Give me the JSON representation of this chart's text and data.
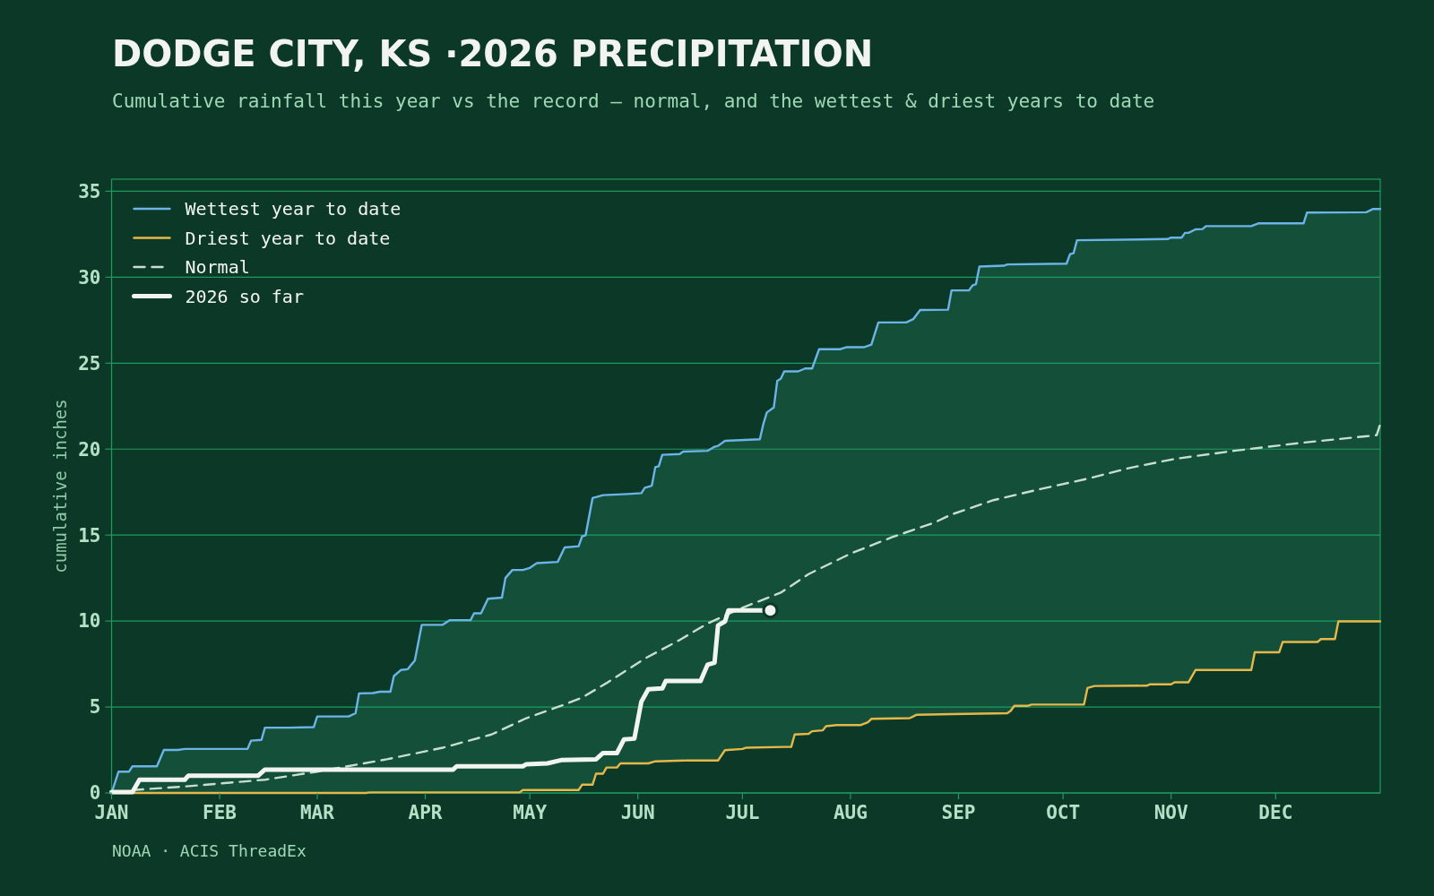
{
  "chart_data": {
    "type": "line",
    "title": "DODGE CITY, KS ·2026 PRECIPITATION",
    "subtitle": "Cumulative rainfall this year vs the record — normal, and the wettest & driest years to date",
    "ylabel": "cumulative inches",
    "annotations": [
      "NOAA · ACIS ThreadEx"
    ],
    "xlim": [
      "--01-01",
      "--12-31"
    ],
    "ylim": [
      0,
      35.7
    ],
    "xticks": [
      {
        "value": "--01-01",
        "label": "JAN"
      },
      {
        "value": "--02-01",
        "label": "FEB"
      },
      {
        "value": "--03-01",
        "label": "MAR"
      },
      {
        "value": "--04-01",
        "label": "APR"
      },
      {
        "value": "--05-01",
        "label": "MAY"
      },
      {
        "value": "--06-01",
        "label": "JUN"
      },
      {
        "value": "--07-01",
        "label": "JUL"
      },
      {
        "value": "--08-01",
        "label": "AUG"
      },
      {
        "value": "--09-01",
        "label": "SEP"
      },
      {
        "value": "--10-01",
        "label": "OCT"
      },
      {
        "value": "--11-01",
        "label": "NOV"
      },
      {
        "value": "--12-01",
        "label": "DEC"
      }
    ],
    "yticks": [
      0,
      5,
      10,
      15,
      20,
      25,
      30,
      35
    ],
    "grid": "y",
    "legend": "top left",
    "series": [
      {
        "name": "Wettest year to date",
        "color": "#6cb4e8",
        "x": [
          "--01-01",
          "--01-03",
          "--01-06",
          "--01-07",
          "--01-14",
          "--01-16",
          "--01-20",
          "--01-22",
          "--02-09",
          "--02-10",
          "--02-13",
          "--02-14",
          "--02-21",
          "--02-28",
          "--03-01",
          "--03-10",
          "--03-12",
          "--03-13",
          "--03-17",
          "--03-19",
          "--03-22",
          "--03-23",
          "--03-25",
          "--03-27",
          "--03-28",
          "--03-29",
          "--03-31",
          "--04-06",
          "--04-08",
          "--04-14",
          "--04-15",
          "--04-17",
          "--04-19",
          "--04-23",
          "--04-24",
          "--04-26",
          "--04-29",
          "--05-01",
          "--05-03",
          "--05-09",
          "--05-11",
          "--05-15",
          "--05-16",
          "--05-17",
          "--05-19",
          "--05-22",
          "--05-29",
          "--06-02",
          "--06-03",
          "--06-05",
          "--06-06",
          "--06-07",
          "--06-08",
          "--06-13",
          "--06-14",
          "--06-21",
          "--06-23",
          "--06-24",
          "--06-26",
          "--07-06",
          "--07-07",
          "--07-08",
          "--07-10",
          "--07-11",
          "--07-12",
          "--07-13",
          "--07-17",
          "--07-19",
          "--07-21",
          "--07-23",
          "--07-29",
          "--07-31",
          "--08-05",
          "--08-07",
          "--08-09",
          "--08-17",
          "--08-19",
          "--08-21",
          "--08-29",
          "--08-30",
          "--09-04",
          "--09-05",
          "--09-06",
          "--09-07",
          "--09-14",
          "--09-15",
          "--10-02",
          "--10-03",
          "--10-04",
          "--10-05",
          "--10-31",
          "--11-01",
          "--11-04",
          "--11-05",
          "--11-06",
          "--11-08",
          "--11-10",
          "--11-11",
          "--11-24",
          "--11-26",
          "--12-09",
          "--12-10",
          "--12-27",
          "--12-29",
          "--12-31"
        ],
        "values": [
          0,
          1.24,
          1.24,
          1.55,
          1.55,
          2.5,
          2.5,
          2.56,
          2.56,
          3.04,
          3.09,
          3.8,
          3.8,
          3.83,
          4.45,
          4.45,
          4.64,
          5.79,
          5.81,
          5.89,
          5.89,
          6.8,
          7.15,
          7.2,
          7.46,
          7.7,
          9.78,
          9.78,
          10.05,
          10.05,
          10.45,
          10.45,
          11.3,
          11.36,
          12.5,
          12.97,
          12.97,
          13.09,
          13.37,
          13.44,
          14.28,
          14.35,
          14.93,
          14.98,
          17.15,
          17.32,
          17.39,
          17.44,
          17.75,
          17.87,
          18.95,
          19.0,
          19.67,
          19.71,
          19.86,
          19.9,
          20.14,
          20.19,
          20.48,
          20.57,
          21.46,
          22.13,
          22.42,
          23.97,
          24.09,
          24.52,
          24.52,
          24.69,
          24.69,
          25.81,
          25.81,
          25.93,
          25.93,
          26.08,
          27.37,
          27.37,
          27.56,
          28.09,
          28.11,
          29.23,
          29.23,
          29.52,
          29.59,
          30.62,
          30.67,
          30.74,
          30.79,
          31.34,
          31.39,
          32.15,
          32.22,
          32.3,
          32.3,
          32.58,
          32.58,
          32.78,
          32.8,
          32.97,
          32.97,
          33.13,
          33.13,
          33.76,
          33.78,
          33.97,
          33.97
        ]
      },
      {
        "name": "Driest year to date",
        "color": "#e6b84a",
        "x": [
          "--01-01",
          "--03-15",
          "--03-16",
          "--04-28",
          "--04-29",
          "--05-15",
          "--05-16",
          "--05-19",
          "--05-20",
          "--05-22",
          "--05-23",
          "--05-26",
          "--05-27",
          "--06-04",
          "--06-06",
          "--06-15",
          "--06-24",
          "--06-26",
          "--07-01",
          "--07-02",
          "--07-13",
          "--07-15",
          "--07-16",
          "--07-20",
          "--07-21",
          "--07-24",
          "--07-25",
          "--07-28",
          "--08-04",
          "--08-06",
          "--08-07",
          "--08-18",
          "--08-20",
          "--08-30",
          "--09-15",
          "--09-16",
          "--09-17",
          "--09-21",
          "--09-22",
          "--10-07",
          "--10-08",
          "--10-10",
          "--10-25",
          "--10-26",
          "--11-01",
          "--11-02",
          "--11-06",
          "--11-08",
          "--11-24",
          "--11-25",
          "--12-02",
          "--12-03",
          "--12-13",
          "--12-14",
          "--12-18",
          "--12-19",
          "--12-31"
        ],
        "values": [
          0,
          0,
          0.03,
          0.03,
          0.17,
          0.17,
          0.48,
          0.48,
          1.12,
          1.12,
          1.48,
          1.48,
          1.72,
          1.72,
          1.84,
          1.89,
          1.89,
          2.49,
          2.56,
          2.63,
          2.68,
          2.68,
          3.4,
          3.44,
          3.59,
          3.64,
          3.88,
          3.95,
          3.95,
          4.11,
          4.31,
          4.35,
          4.55,
          4.59,
          4.64,
          4.78,
          5.07,
          5.07,
          5.14,
          5.14,
          6.1,
          6.22,
          6.24,
          6.32,
          6.32,
          6.44,
          6.44,
          7.15,
          7.15,
          8.18,
          8.18,
          8.78,
          8.78,
          8.95,
          8.95,
          9.98,
          9.98
        ]
      },
      {
        "name": "Normal",
        "color": "#c8dfcf",
        "line_style": "dashed",
        "x": [
          "--01-07",
          "--01-21",
          "--02-14",
          "--03-01",
          "--03-21",
          "--04-06",
          "--04-20",
          "--04-30",
          "--05-10",
          "--05-16",
          "--05-23",
          "--06-03",
          "--06-13",
          "--06-21",
          "--06-30",
          "--07-12",
          "--07-20",
          "--08-01",
          "--08-13",
          "--08-25",
          "--08-30",
          "--09-11",
          "--09-25",
          "--10-08",
          "--10-20",
          "--11-02",
          "--11-19",
          "--12-09",
          "--12-30",
          "--12-31"
        ],
        "values": [
          0.17,
          0.36,
          0.77,
          1.24,
          1.96,
          2.63,
          3.4,
          4.35,
          5.07,
          5.55,
          6.39,
          7.82,
          8.9,
          9.86,
          10.69,
          11.65,
          12.73,
          13.92,
          14.88,
          15.72,
          16.2,
          17.03,
          17.7,
          18.28,
          18.9,
          19.43,
          19.9,
          20.38,
          20.81,
          21.46
        ]
      },
      {
        "name": "2026 so far",
        "color": "#f2f5ef",
        "x": [
          "--01-01",
          "--01-07",
          "--01-09",
          "--01-22",
          "--01-23",
          "--02-12",
          "--02-14",
          "--04-09",
          "--04-10",
          "--04-29",
          "--04-30",
          "--05-06",
          "--05-10",
          "--05-20",
          "--05-22",
          "--05-26",
          "--05-28",
          "--05-31",
          "--06-02",
          "--06-04",
          "--06-08",
          "--06-09",
          "--06-19",
          "--06-21",
          "--06-23",
          "--06-24",
          "--06-26",
          "--06-27",
          "--07-09"
        ],
        "values": [
          0.05,
          0.05,
          0.77,
          0.77,
          1.0,
          1.0,
          1.36,
          1.36,
          1.55,
          1.55,
          1.67,
          1.72,
          1.91,
          1.96,
          2.32,
          2.32,
          3.11,
          3.16,
          5.31,
          6.03,
          6.08,
          6.51,
          6.51,
          7.46,
          7.58,
          9.74,
          9.98,
          10.62,
          10.62
        ]
      },
      {
        "type": "scatter",
        "marker": "circle",
        "color": "#f2f5ef",
        "x": [
          "--07-09"
        ],
        "values": [
          10.62
        ]
      }
    ]
  }
}
